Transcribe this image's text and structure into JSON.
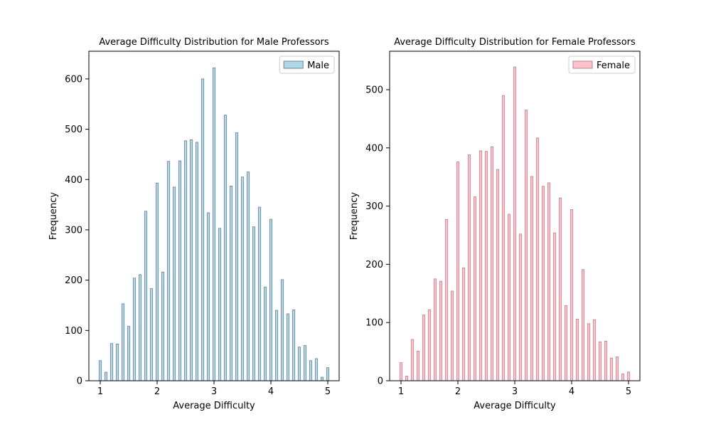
{
  "chart_data": [
    {
      "type": "bar",
      "title": "Average Difficulty Distribution for Male Professors",
      "xlabel": "Average Difficulty",
      "ylabel": "Frequency",
      "xlim": [
        0.8,
        5.2
      ],
      "ylim": [
        0,
        655
      ],
      "xticks": [
        1,
        2,
        3,
        4,
        5
      ],
      "yticks": [
        0,
        100,
        200,
        300,
        400,
        500,
        600
      ],
      "legend": "top-right",
      "grid": false,
      "series": [
        {
          "name": "Male",
          "color": "#add8e6",
          "edge_color": "#708090",
          "x": [
            1.0,
            1.1,
            1.2,
            1.3,
            1.4,
            1.5,
            1.6,
            1.7,
            1.8,
            1.9,
            2.0,
            2.1,
            2.2,
            2.3,
            2.4,
            2.5,
            2.6,
            2.7,
            2.8,
            2.9,
            3.0,
            3.1,
            3.2,
            3.3,
            3.4,
            3.5,
            3.6,
            3.7,
            3.8,
            3.9,
            4.0,
            4.1,
            4.2,
            4.3,
            4.4,
            4.5,
            4.6,
            4.7,
            4.8,
            4.9,
            5.0
          ],
          "values": [
            40,
            17,
            74,
            73,
            153,
            108,
            204,
            211,
            337,
            183,
            393,
            216,
            436,
            385,
            437,
            477,
            479,
            474,
            600,
            334,
            622,
            303,
            528,
            387,
            493,
            405,
            415,
            306,
            345,
            186,
            321,
            140,
            201,
            133,
            141,
            67,
            70,
            40,
            44,
            7,
            26
          ]
        }
      ]
    },
    {
      "type": "bar",
      "title": "Average Difficulty Distribution for Female Professors",
      "xlabel": "Average Difficulty",
      "ylabel": "Frequency",
      "xlim": [
        0.8,
        5.2
      ],
      "ylim": [
        0,
        566
      ],
      "xticks": [
        1,
        2,
        3,
        4,
        5
      ],
      "yticks": [
        0,
        100,
        200,
        300,
        400,
        500
      ],
      "legend": "top-right",
      "grid": false,
      "series": [
        {
          "name": "Female",
          "color": "#ffc0cb",
          "edge_color": "#b08890",
          "x": [
            1.0,
            1.1,
            1.2,
            1.3,
            1.4,
            1.5,
            1.6,
            1.7,
            1.8,
            1.9,
            2.0,
            2.1,
            2.2,
            2.3,
            2.4,
            2.5,
            2.6,
            2.7,
            2.8,
            2.9,
            3.0,
            3.1,
            3.2,
            3.3,
            3.4,
            3.5,
            3.6,
            3.7,
            3.8,
            3.9,
            4.0,
            4.1,
            4.2,
            4.3,
            4.4,
            4.5,
            4.6,
            4.7,
            4.8,
            4.9,
            5.0
          ],
          "values": [
            31,
            8,
            71,
            51,
            113,
            122,
            175,
            171,
            277,
            154,
            376,
            194,
            388,
            316,
            395,
            394,
            402,
            363,
            490,
            286,
            539,
            252,
            465,
            351,
            417,
            334,
            340,
            254,
            314,
            129,
            294,
            106,
            191,
            98,
            105,
            67,
            68,
            39,
            41,
            12,
            15
          ]
        }
      ]
    }
  ]
}
